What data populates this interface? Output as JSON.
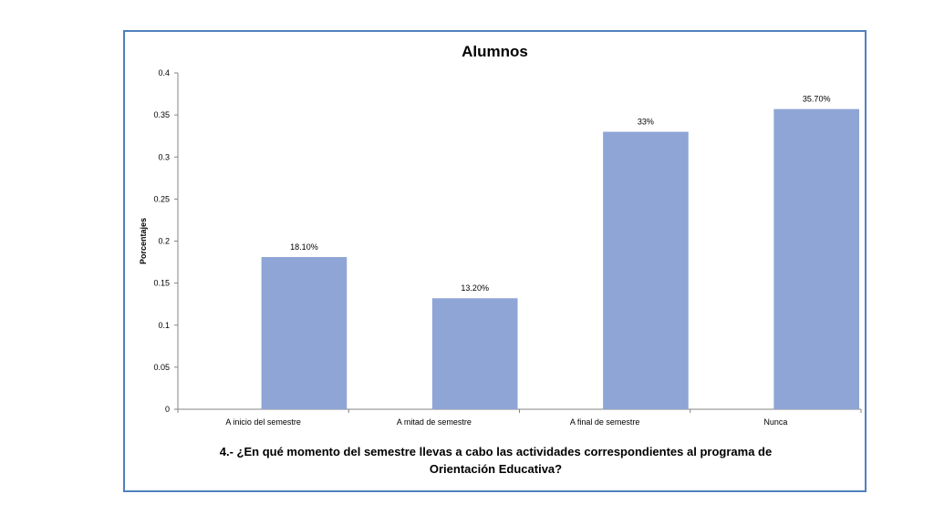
{
  "chart_data": {
    "type": "bar",
    "title": "Alumnos",
    "xlabel": "",
    "ylabel": "Porcentajes",
    "categories": [
      "A inicio del semestre",
      "A mitad de semestre",
      "A final de semestre",
      "Nunca"
    ],
    "values": [
      0.181,
      0.132,
      0.33,
      0.357
    ],
    "data_labels": [
      "18.10%",
      "13.20%",
      "33%",
      "35.70%"
    ],
    "ylim": [
      0,
      0.4
    ],
    "yticks": [
      "0",
      "0.05",
      "0.1",
      "0.15",
      "0.2",
      "0.25",
      "0.3",
      "0.35",
      "0.4"
    ],
    "grid": false,
    "legend": "none"
  },
  "caption": {
    "line1": "4.- ¿En qué momento del semestre llevas a cabo las actividades correspondientes al programa de",
    "line2": "Orientación Educativa?"
  },
  "colors": {
    "bar": "#8ea5d6",
    "frame_border": "#4f81bd",
    "axis": "#868686"
  }
}
